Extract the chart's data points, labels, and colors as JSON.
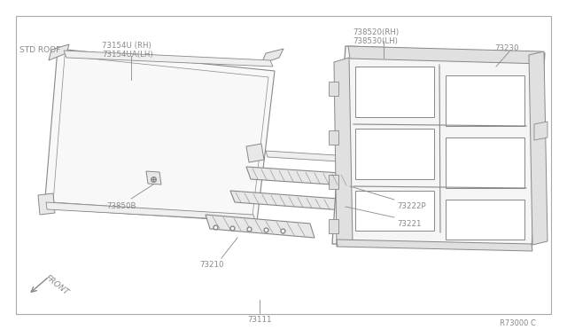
{
  "bg_color": "#ffffff",
  "border_color": "#888888",
  "line_color": "#888888",
  "text_color": "#888888",
  "ref_code": "R73000 C",
  "labels": {
    "std_roof": "STD ROOF",
    "front": "FRONT",
    "p73154U": "73154U (RH)\n73154UA(LH)",
    "p73850B": "73850B",
    "p73111": "73111",
    "p73210": "73210",
    "p73221": "73221",
    "p73222P": "73222P",
    "p73230": "73230",
    "p738520": "738520(RH)\n738530(LH)"
  }
}
